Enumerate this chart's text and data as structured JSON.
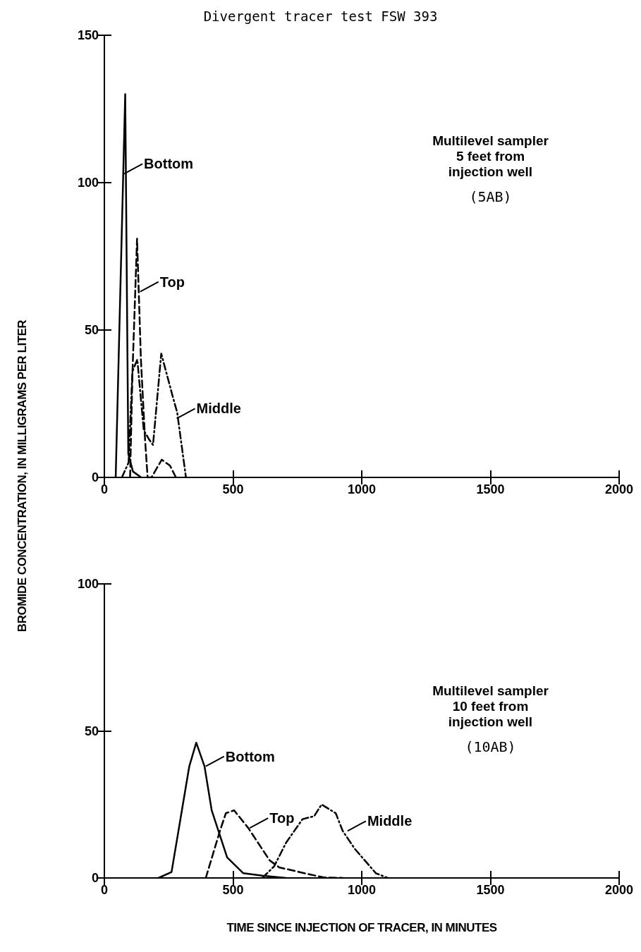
{
  "chart_data": [
    {
      "type": "line",
      "title": "Divergent tracer test FSW 393",
      "ylabel": "BROMIDE CONCENTRATION, IN MILLIGRAMS PER LITER",
      "xlim": [
        0,
        2000
      ],
      "xticks": [
        0,
        500,
        1000,
        1500,
        2000
      ],
      "ylim": [
        0,
        150
      ],
      "yticks": [
        0,
        50,
        100,
        150
      ],
      "grid": false,
      "marker": "none",
      "series": [
        {
          "color": "#000000",
          "line_style": "solid",
          "x": [
            44,
            81,
            93,
            111,
            143
          ],
          "values": [
            0,
            130,
            8,
            2,
            0
          ]
        },
        {
          "color": "#000000",
          "line_style": "dashed",
          "x": [
            100,
            109,
            127,
            142,
            158,
            168,
            183,
            223,
            255,
            278
          ],
          "values": [
            0,
            35,
            81,
            40,
            13,
            0,
            0,
            6,
            4,
            0
          ]
        },
        {
          "color": "#000000",
          "line_style": "dashdot",
          "x": [
            68,
            94,
            109,
            128,
            153,
            173,
            189,
            221,
            267,
            283,
            317
          ],
          "values": [
            0,
            5,
            36,
            40,
            16,
            13,
            11,
            42,
            27,
            22,
            0
          ]
        }
      ],
      "annotations": [
        {
          "text": "Bottom",
          "x": 77,
          "y": 103
        },
        {
          "text": "Top",
          "x": 139,
          "y": 63
        },
        {
          "text": "Middle",
          "x": 281,
          "y": 20
        },
        "Multilevel sampler\n5 feet from\ninjection well",
        "(5AB)"
      ]
    },
    {
      "type": "line",
      "xlabel": "TIME SINCE INJECTION OF TRACER, IN MINUTES",
      "xlim": [
        0,
        2000
      ],
      "xticks": [
        0,
        500,
        1000,
        1500,
        2000
      ],
      "ylim": [
        0,
        100
      ],
      "yticks": [
        0,
        50,
        100
      ],
      "grid": false,
      "marker": "none",
      "series": [
        {
          "color": "#000000",
          "line_style": "solid",
          "x": [
            210,
            261,
            330,
            357,
            389,
            417,
            477,
            540,
            614,
            705
          ],
          "values": [
            0,
            2,
            38,
            46,
            38,
            23,
            7,
            1.6,
            0.8,
            0
          ]
        },
        {
          "color": "#000000",
          "line_style": "dashed",
          "x": [
            394,
            449,
            472,
            504,
            559,
            642,
            679,
            798,
            853,
            926
          ],
          "values": [
            0,
            16,
            22,
            23,
            17,
            6,
            3.6,
            1.2,
            0.2,
            0
          ]
        },
        {
          "color": "#000000",
          "line_style": "dashdot",
          "x": [
            614,
            660,
            706,
            770,
            815,
            844,
            899,
            926,
            972,
            1055,
            1101
          ],
          "values": [
            0,
            4,
            12,
            20,
            21,
            25,
            22,
            16,
            10,
            1.6,
            0
          ]
        }
      ],
      "annotations": [
        {
          "text": "Bottom",
          "x": 394,
          "y": 38
        },
        {
          "text": "Top",
          "x": 565,
          "y": 17
        },
        {
          "text": "Middle",
          "x": 945,
          "y": 16
        },
        "Multilevel sampler\n10 feet from\ninjection well",
        "(10AB)"
      ]
    }
  ]
}
